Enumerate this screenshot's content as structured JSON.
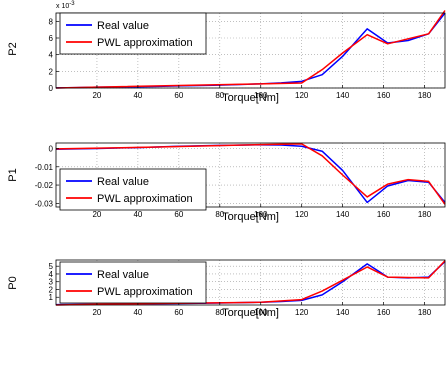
{
  "chart_data": [
    {
      "type": "line",
      "xlabel": "Torque[Nm]",
      "ylabel": "P2",
      "axis_multiplier": "x 10",
      "axis_multiplier_exponent": "-3",
      "xlim": [
        0,
        190
      ],
      "ylim": [
        0,
        0.009
      ],
      "xticks": [
        20,
        40,
        60,
        80,
        100,
        120,
        140,
        160,
        180
      ],
      "xtick_labels": [
        "20",
        "40",
        "60",
        "80",
        "100",
        "120",
        "140",
        "160",
        "180"
      ],
      "yticks": [
        0,
        0.002,
        0.004,
        0.006,
        0.008
      ],
      "ytick_labels": [
        "0",
        "2",
        "4",
        "6",
        "8"
      ],
      "grid": "dotted",
      "legend_position": "top-left",
      "series": [
        {
          "name": "Real value",
          "color": "#0000ff",
          "points": [
            [
              0,
              2e-05
            ],
            [
              10,
              5e-05
            ],
            [
              20,
              0.0001
            ],
            [
              30,
              0.00012
            ],
            [
              40,
              0.00015
            ],
            [
              50,
              0.0002
            ],
            [
              60,
              0.00025
            ],
            [
              70,
              0.0003
            ],
            [
              80,
              0.00035
            ],
            [
              90,
              0.00042
            ],
            [
              100,
              0.0005
            ],
            [
              110,
              0.00062
            ],
            [
              120,
              0.0008
            ],
            [
              130,
              0.0016
            ],
            [
              140,
              0.0038
            ],
            [
              152,
              0.0071
            ],
            [
              162,
              0.0054
            ],
            [
              172,
              0.0057
            ],
            [
              182,
              0.0065
            ],
            [
              190,
              0.009
            ]
          ]
        },
        {
          "name": "PWL approximation",
          "color": "#ff0000",
          "points": [
            [
              0,
              0.0
            ],
            [
              100,
              0.0005
            ],
            [
              120,
              0.0006
            ],
            [
              130,
              0.0022
            ],
            [
              140,
              0.0042
            ],
            [
              152,
              0.0064
            ],
            [
              162,
              0.0053
            ],
            [
              182,
              0.0065
            ],
            [
              190,
              0.0093
            ]
          ]
        }
      ]
    },
    {
      "type": "line",
      "xlabel": "Torque[Nm]",
      "ylabel": "P1",
      "xlim": [
        0,
        190
      ],
      "ylim": [
        -0.032,
        0.003
      ],
      "xticks": [
        20,
        40,
        60,
        80,
        100,
        120,
        140,
        160,
        180
      ],
      "xtick_labels": [
        "20",
        "40",
        "60",
        "80",
        "100",
        "120",
        "140",
        "160",
        "180"
      ],
      "yticks": [
        0,
        -0.01,
        -0.02,
        -0.03
      ],
      "ytick_labels": [
        "0",
        "-0.01",
        "-0.02",
        "-0.03"
      ],
      "grid": "dotted",
      "legend_position": "bottom-left",
      "series": [
        {
          "name": "Real value",
          "color": "#0000ff",
          "points": [
            [
              0,
              -0.0004
            ],
            [
              20,
              0.0
            ],
            [
              40,
              0.0005
            ],
            [
              60,
              0.0012
            ],
            [
              80,
              0.0017
            ],
            [
              100,
              0.002
            ],
            [
              110,
              0.0019
            ],
            [
              120,
              0.0012
            ],
            [
              130,
              -0.0015
            ],
            [
              140,
              -0.012
            ],
            [
              152,
              -0.0295
            ],
            [
              162,
              -0.0205
            ],
            [
              172,
              -0.0175
            ],
            [
              182,
              -0.0185
            ],
            [
              190,
              -0.0295
            ]
          ]
        },
        {
          "name": "PWL approximation",
          "color": "#ff0000",
          "points": [
            [
              0,
              -0.0002
            ],
            [
              50,
              0.0008
            ],
            [
              100,
              0.0021
            ],
            [
              120,
              0.0025
            ],
            [
              130,
              -0.004
            ],
            [
              140,
              -0.0145
            ],
            [
              152,
              -0.0265
            ],
            [
              162,
              -0.0195
            ],
            [
              172,
              -0.017
            ],
            [
              182,
              -0.018
            ],
            [
              190,
              -0.0305
            ]
          ]
        }
      ]
    },
    {
      "type": "line",
      "xlabel": "Torque[Nm]",
      "ylabel": "P0",
      "xlim": [
        0,
        190
      ],
      "ylim": [
        0,
        5.8
      ],
      "xticks": [
        20,
        40,
        60,
        80,
        100,
        120,
        140,
        160,
        180
      ],
      "xtick_labels": [
        "20",
        "40",
        "60",
        "80",
        "100",
        "120",
        "140",
        "160",
        "180"
      ],
      "yticks": [
        1,
        2,
        3,
        4,
        5
      ],
      "ytick_labels": [
        "1",
        "2",
        "3",
        "4",
        "5"
      ],
      "grid": "dotted",
      "legend_position": "top-left",
      "series": [
        {
          "name": "Real value",
          "color": "#0000ff",
          "points": [
            [
              0,
              0.05
            ],
            [
              20,
              0.1
            ],
            [
              40,
              0.15
            ],
            [
              60,
              0.2
            ],
            [
              80,
              0.25
            ],
            [
              100,
              0.35
            ],
            [
              110,
              0.45
            ],
            [
              120,
              0.6
            ],
            [
              130,
              1.3
            ],
            [
              140,
              3.0
            ],
            [
              152,
              5.3
            ],
            [
              162,
              3.6
            ],
            [
              172,
              3.5
            ],
            [
              182,
              3.6
            ],
            [
              190,
              5.6
            ]
          ]
        },
        {
          "name": "PWL approximation",
          "color": "#ff0000",
          "points": [
            [
              0,
              0.0
            ],
            [
              20,
              0.1
            ],
            [
              100,
              0.35
            ],
            [
              120,
              0.7
            ],
            [
              130,
              1.8
            ],
            [
              140,
              3.2
            ],
            [
              152,
              4.9
            ],
            [
              162,
              3.6
            ],
            [
              182,
              3.5
            ],
            [
              190,
              5.7
            ]
          ]
        }
      ]
    }
  ]
}
